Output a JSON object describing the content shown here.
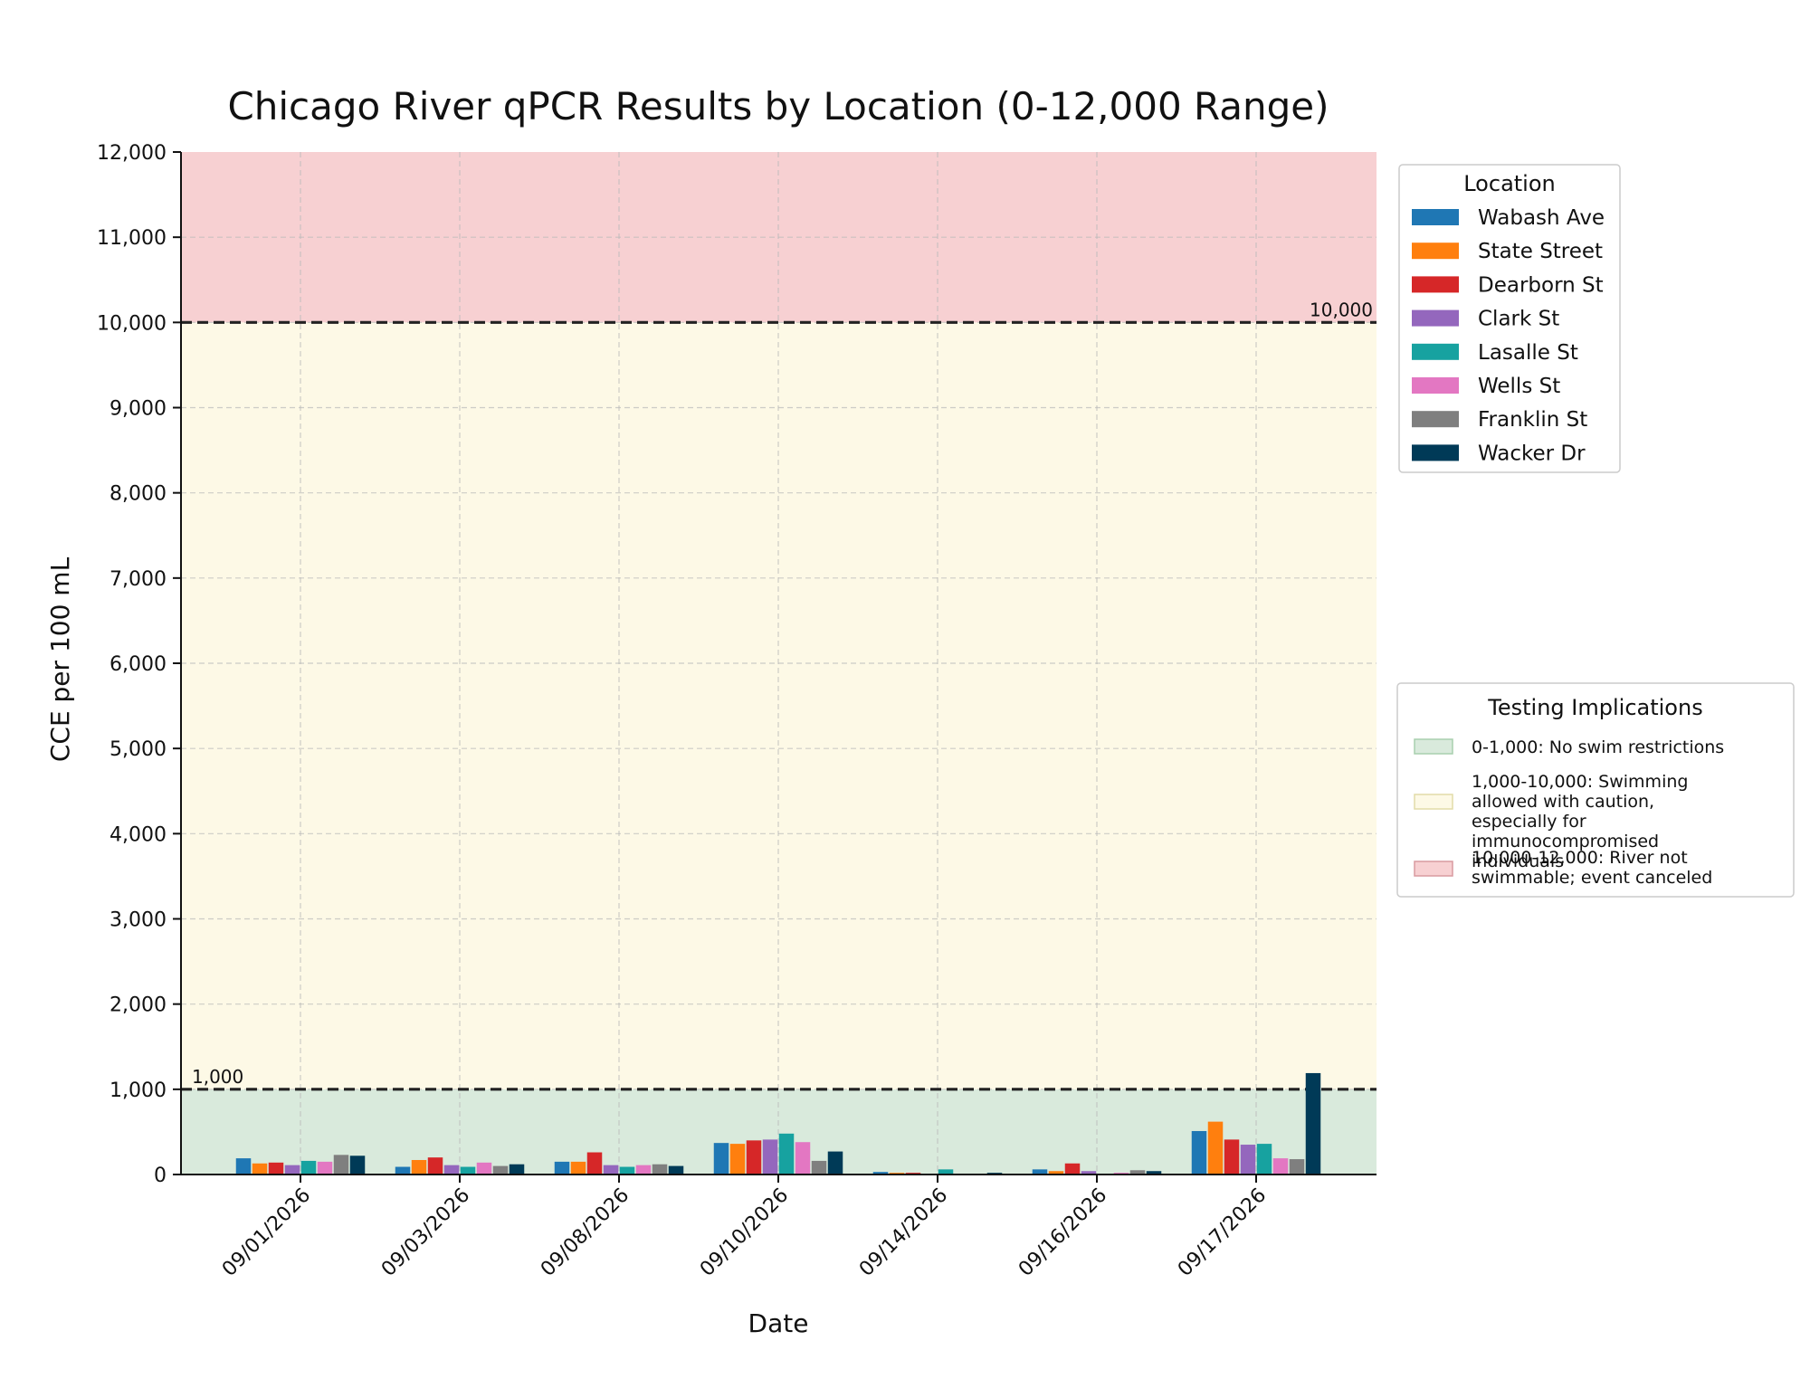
{
  "chart_data": {
    "type": "bar",
    "title": "Chicago River qPCR Results by Location (0-12,000 Range)",
    "xlabel": "Date",
    "ylabel": "CCE per 100 mL",
    "ylim": [
      0,
      12000
    ],
    "yticks": [
      0,
      1000,
      2000,
      3000,
      4000,
      5000,
      6000,
      7000,
      8000,
      9000,
      10000,
      11000,
      12000
    ],
    "ytick_labels": [
      "0",
      "1,000",
      "2,000",
      "3,000",
      "4,000",
      "5,000",
      "6,000",
      "7,000",
      "8,000",
      "9,000",
      "10,000",
      "11,000",
      "12,000"
    ],
    "grid": true,
    "categories": [
      "09/01/2026",
      "09/03/2026",
      "09/08/2026",
      "09/10/2026",
      "09/14/2026",
      "09/16/2026",
      "09/17/2026"
    ],
    "series": [
      {
        "name": "Wabash Ave",
        "color": "#1f77b4",
        "values": [
          190,
          90,
          150,
          370,
          30,
          60,
          510
        ]
      },
      {
        "name": "State Street",
        "color": "#ff7f0e",
        "values": [
          130,
          170,
          150,
          360,
          20,
          40,
          620
        ]
      },
      {
        "name": "Dearborn St",
        "color": "#d62728",
        "values": [
          140,
          200,
          260,
          400,
          20,
          130,
          410
        ]
      },
      {
        "name": "Clark St",
        "color": "#9467bd",
        "values": [
          110,
          110,
          110,
          410,
          10,
          40,
          350
        ]
      },
      {
        "name": "Lasalle St",
        "color": "#17a2a0",
        "values": [
          160,
          90,
          90,
          480,
          60,
          10,
          360
        ]
      },
      {
        "name": "Wells St",
        "color": "#e377c2",
        "values": [
          150,
          140,
          110,
          380,
          10,
          20,
          190
        ]
      },
      {
        "name": "Franklin St",
        "color": "#7f7f7f",
        "values": [
          230,
          100,
          120,
          160,
          10,
          50,
          180
        ]
      },
      {
        "name": "Wacker Dr",
        "color": "#003a57",
        "values": [
          220,
          120,
          100,
          270,
          20,
          40,
          1190
        ]
      }
    ],
    "legend_title": "Location",
    "legend_position": "top-right, outside plot",
    "zones": [
      {
        "from": 0,
        "to": 1000,
        "color": "#d9eadc",
        "edge": "#a8cfae",
        "label": "0-1,000: No swim restrictions"
      },
      {
        "from": 1000,
        "to": 10000,
        "color": "#fdf9e6",
        "edge": "#e2dca8",
        "label": "1,000-10,000: Swimming allowed with caution, especially for immunocompromised individuals"
      },
      {
        "from": 10000,
        "to": 12000,
        "color": "#f7d0d2",
        "edge": "#d99aa0",
        "label": "10,000-12,000: River not swimmable; event canceled"
      }
    ],
    "zones_legend_title": "Testing Implications",
    "zones_legend_position": "right, outside plot",
    "thresholds": [
      {
        "value": 1000,
        "label": "1,000",
        "label_side": "left"
      },
      {
        "value": 10000,
        "label": "10,000",
        "label_side": "right"
      }
    ]
  }
}
